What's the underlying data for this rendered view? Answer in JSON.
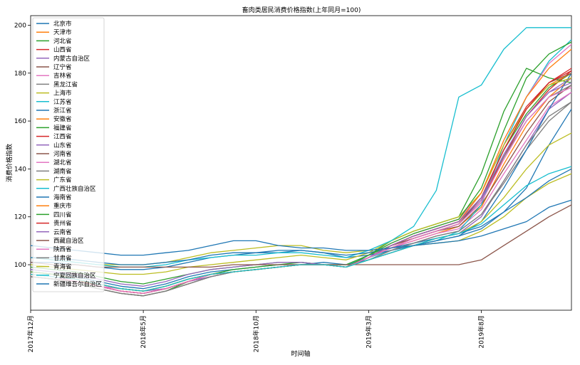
{
  "chart_data": {
    "type": "line",
    "title": "畜肉类居民消费价格指数(上年同月=100)",
    "xlabel": "时间轴",
    "ylabel": "消费价格指数",
    "x": [
      "2017-12",
      "2018-01",
      "2018-02",
      "2018-03",
      "2018-04",
      "2018-05",
      "2018-06",
      "2018-07",
      "2018-08",
      "2018-09",
      "2018-10",
      "2018-11",
      "2018-12",
      "2019-01",
      "2019-02",
      "2019-03",
      "2019-04",
      "2019-05",
      "2019-06",
      "2019-07",
      "2019-08",
      "2019-09",
      "2019-10",
      "2019-11",
      "2019-12"
    ],
    "xticks": [
      "2017年12月",
      "2018年5月",
      "2018年10月",
      "2019年3月",
      "2019年8月"
    ],
    "ylim": [
      81,
      204
    ],
    "yticks": [
      100,
      120,
      140,
      160,
      180,
      200
    ],
    "legend_position": "upper-left",
    "grid": false,
    "colors": [
      "#1f77b4",
      "#ff7f0e",
      "#2ca02c",
      "#d62728",
      "#9467bd",
      "#8c564b",
      "#e377c2",
      "#7f7f7f",
      "#bcbd22",
      "#17becf"
    ],
    "series": [
      {
        "name": "北京市",
        "values": [
          98,
          97,
          95,
          93,
          91,
          90,
          92,
          95,
          97,
          98,
          99,
          100,
          100,
          101,
          100,
          102,
          105,
          108,
          110,
          112,
          115,
          122,
          132,
          150,
          165
        ]
      },
      {
        "name": "天津市",
        "values": [
          97,
          96,
          94,
          91,
          89,
          88,
          90,
          93,
          96,
          97,
          98,
          99,
          100,
          100,
          99,
          103,
          107,
          110,
          113,
          116,
          124,
          142,
          158,
          170,
          178
        ]
      },
      {
        "name": "河北省",
        "values": [
          96,
          95,
          93,
          90,
          88,
          87,
          89,
          93,
          96,
          98,
          99,
          100,
          101,
          100,
          99,
          104,
          108,
          112,
          115,
          118,
          128,
          148,
          163,
          174,
          180
        ]
      },
      {
        "name": "山西省",
        "values": [
          96,
          95,
          93,
          91,
          89,
          88,
          90,
          93,
          96,
          97,
          98,
          99,
          100,
          100,
          99,
          103,
          107,
          111,
          114,
          117,
          126,
          145,
          162,
          173,
          181
        ]
      },
      {
        "name": "内蒙古自治区",
        "values": [
          95,
          94,
          93,
          91,
          90,
          89,
          90,
          93,
          95,
          97,
          98,
          99,
          100,
          100,
          99,
          102,
          105,
          108,
          111,
          113,
          120,
          135,
          150,
          165,
          172
        ]
      },
      {
        "name": "辽宁省",
        "values": [
          95,
          94,
          92,
          90,
          88,
          87,
          89,
          92,
          95,
          97,
          98,
          99,
          100,
          100,
          99,
          103,
          108,
          111,
          114,
          116,
          125,
          140,
          155,
          168,
          175
        ]
      },
      {
        "name": "吉林省",
        "values": [
          96,
          95,
          93,
          91,
          89,
          88,
          90,
          93,
          96,
          97,
          98,
          99,
          100,
          100,
          99,
          103,
          107,
          110,
          113,
          115,
          123,
          138,
          152,
          166,
          172
        ]
      },
      {
        "name": "黑龙江省",
        "values": [
          95,
          94,
          92,
          90,
          88,
          87,
          89,
          92,
          95,
          97,
          98,
          99,
          100,
          100,
          99,
          102,
          106,
          109,
          112,
          114,
          121,
          134,
          148,
          160,
          168
        ]
      },
      {
        "name": "上海市",
        "values": [
          103,
          102,
          101,
          100,
          100,
          100,
          101,
          103,
          105,
          106,
          107,
          108,
          108,
          106,
          105,
          106,
          107,
          108,
          109,
          110,
          114,
          120,
          128,
          134,
          138
        ]
      },
      {
        "name": "江苏省",
        "values": [
          97,
          96,
          94,
          92,
          90,
          89,
          91,
          94,
          96,
          97,
          98,
          99,
          100,
          100,
          100,
          103,
          106,
          108,
          110,
          114,
          125,
          150,
          170,
          185,
          194
        ]
      },
      {
        "name": "浙江省",
        "values": [
          101,
          101,
          100,
          99,
          98,
          98,
          99,
          101,
          103,
          104,
          105,
          105,
          106,
          105,
          103,
          104,
          106,
          108,
          110,
          112,
          118,
          132,
          148,
          165,
          180
        ]
      },
      {
        "name": "安徽省",
        "values": [
          97,
          96,
          94,
          92,
          90,
          89,
          91,
          94,
          96,
          97,
          98,
          99,
          100,
          100,
          99,
          103,
          108,
          111,
          114,
          117,
          128,
          148,
          165,
          175,
          180
        ]
      },
      {
        "name": "福建省",
        "values": [
          99,
          98,
          97,
          95,
          93,
          92,
          94,
          96,
          98,
          99,
          100,
          101,
          101,
          100,
          100,
          104,
          110,
          114,
          117,
          120,
          138,
          164,
          182,
          178,
          176
        ]
      },
      {
        "name": "江西省",
        "values": [
          96,
          95,
          93,
          91,
          89,
          88,
          90,
          93,
          96,
          97,
          98,
          99,
          100,
          100,
          99,
          103,
          108,
          112,
          115,
          118,
          130,
          150,
          166,
          176,
          181
        ]
      },
      {
        "name": "山东省",
        "values": [
          96,
          95,
          93,
          91,
          89,
          88,
          90,
          93,
          95,
          97,
          98,
          99,
          100,
          100,
          99,
          103,
          107,
          111,
          114,
          117,
          127,
          146,
          162,
          172,
          178
        ]
      },
      {
        "name": "河南省",
        "values": [
          95,
          94,
          93,
          91,
          89,
          88,
          90,
          93,
          96,
          97,
          98,
          99,
          100,
          100,
          99,
          103,
          108,
          111,
          114,
          117,
          128,
          148,
          165,
          176,
          180
        ]
      },
      {
        "name": "湖北省",
        "values": [
          96,
          95,
          93,
          91,
          90,
          89,
          91,
          94,
          96,
          97,
          98,
          99,
          100,
          100,
          99,
          104,
          109,
          113,
          116,
          119,
          130,
          152,
          170,
          184,
          192
        ]
      },
      {
        "name": "湖南省",
        "values": [
          97,
          96,
          94,
          92,
          90,
          89,
          91,
          94,
          96,
          97,
          98,
          99,
          100,
          100,
          99,
          103,
          108,
          112,
          115,
          118,
          128,
          145,
          160,
          170,
          175
        ]
      },
      {
        "name": "广东省",
        "values": [
          100,
          99,
          98,
          97,
          96,
          96,
          97,
          99,
          100,
          101,
          102,
          103,
          104,
          103,
          102,
          105,
          110,
          114,
          117,
          120,
          130,
          150,
          165,
          175,
          178
        ]
      },
      {
        "name": "广西壮族自治区",
        "values": [
          103,
          102,
          101,
          100,
          99,
          99,
          100,
          102,
          103,
          104,
          104,
          105,
          105,
          104,
          103,
          106,
          110,
          116,
          131,
          170,
          175,
          190,
          199,
          199,
          199
        ]
      },
      {
        "name": "海南省",
        "values": [
          103,
          103,
          102,
          101,
          100,
          100,
          101,
          102,
          104,
          105,
          105,
          106,
          106,
          105,
          104,
          105,
          107,
          109,
          111,
          113,
          116,
          122,
          128,
          135,
          140
        ]
      },
      {
        "name": "重庆市",
        "values": [
          97,
          96,
          94,
          92,
          90,
          89,
          91,
          94,
          96,
          97,
          98,
          99,
          100,
          100,
          99,
          103,
          108,
          112,
          115,
          118,
          130,
          152,
          170,
          182,
          190
        ]
      },
      {
        "name": "四川省",
        "values": [
          97,
          96,
          94,
          92,
          90,
          89,
          91,
          94,
          96,
          97,
          98,
          99,
          100,
          100,
          99,
          104,
          109,
          113,
          116,
          119,
          132,
          156,
          178,
          188,
          193
        ]
      },
      {
        "name": "贵州省",
        "values": [
          96,
          95,
          93,
          91,
          89,
          88,
          90,
          93,
          96,
          97,
          98,
          99,
          100,
          100,
          99,
          103,
          108,
          112,
          115,
          118,
          128,
          148,
          165,
          176,
          182
        ]
      },
      {
        "name": "云南省",
        "values": [
          98,
          97,
          96,
          94,
          92,
          91,
          93,
          96,
          98,
          99,
          100,
          101,
          101,
          100,
          99,
          103,
          108,
          112,
          115,
          118,
          128,
          146,
          162,
          172,
          176
        ]
      },
      {
        "name": "西藏自治区",
        "values": [
          101,
          100,
          100,
          99,
          99,
          99,
          99,
          99,
          99,
          100,
          100,
          100,
          100,
          100,
          100,
          100,
          100,
          100,
          100,
          100,
          102,
          108,
          114,
          120,
          125
        ]
      },
      {
        "name": "陕西省",
        "values": [
          96,
          95,
          93,
          91,
          89,
          88,
          90,
          93,
          96,
          97,
          98,
          99,
          100,
          100,
          99,
          103,
          107,
          111,
          114,
          117,
          126,
          144,
          160,
          170,
          174
        ]
      },
      {
        "name": "甘肃省",
        "values": [
          95,
          94,
          92,
          90,
          88,
          87,
          89,
          92,
          95,
          97,
          98,
          99,
          100,
          100,
          99,
          102,
          106,
          109,
          112,
          114,
          121,
          135,
          150,
          162,
          168
        ]
      },
      {
        "name": "青海省",
        "values": [
          96,
          95,
          94,
          92,
          90,
          89,
          91,
          94,
          96,
          97,
          98,
          99,
          100,
          100,
          99,
          102,
          105,
          108,
          111,
          113,
          118,
          128,
          140,
          150,
          155
        ]
      },
      {
        "name": "宁夏回族自治区",
        "values": [
          96,
          95,
          94,
          92,
          90,
          89,
          91,
          94,
          96,
          97,
          98,
          99,
          100,
          100,
          99,
          102,
          105,
          108,
          111,
          113,
          117,
          125,
          133,
          138,
          141
        ]
      },
      {
        "name": "新疆维吾尔自治区",
        "values": [
          108,
          107,
          106,
          105,
          104,
          104,
          105,
          106,
          108,
          110,
          110,
          108,
          107,
          107,
          106,
          106,
          107,
          108,
          109,
          110,
          112,
          115,
          118,
          124,
          127
        ]
      }
    ]
  }
}
